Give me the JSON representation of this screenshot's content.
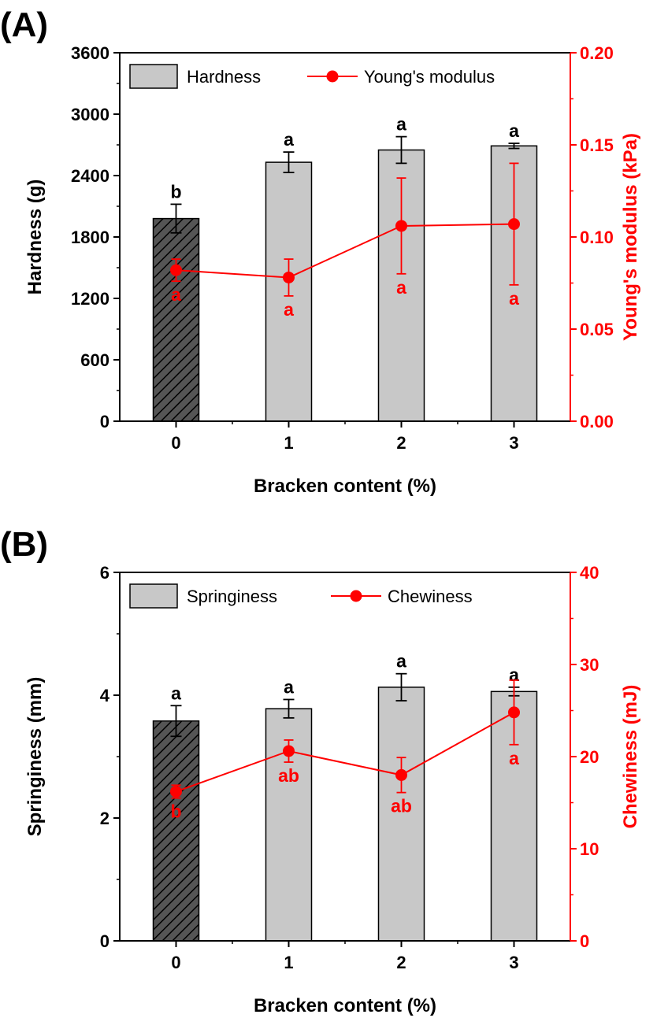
{
  "chart_data": [
    {
      "panel_label": "(A)",
      "type": "bar",
      "categories": [
        "0",
        "1",
        "2",
        "3"
      ],
      "xlabel": "Bracken content (%)",
      "ylabel": "Hardness (g)",
      "ylim": [
        0,
        3600
      ],
      "yticks": [
        "0",
        "600",
        "1200",
        "1800",
        "2400",
        "3000",
        "3600"
      ],
      "y2label": "Young's modulus (kPa)",
      "y2lim": [
        0,
        0.2
      ],
      "y2ticks": [
        "0.00",
        "0.05",
        "0.10",
        "0.15",
        "0.20"
      ],
      "right_axis_color": "#ff0000",
      "legend_placement": "top",
      "series": [
        {
          "name": "Hardness",
          "kind": "bar",
          "axis": "left",
          "values": [
            1980,
            2530,
            2650,
            2690
          ],
          "errors": [
            140,
            100,
            130,
            25
          ],
          "letters": [
            "b",
            "a",
            "a",
            "a"
          ],
          "fill": "#c8c8c8",
          "hatched_categories": [
            "0"
          ]
        },
        {
          "name": "Young's modulus",
          "kind": "line",
          "axis": "right",
          "values": [
            0.082,
            0.078,
            0.106,
            0.107
          ],
          "errors": [
            0.006,
            0.01,
            0.026,
            0.033
          ],
          "letters": [
            "a",
            "a",
            "a",
            "a"
          ],
          "color": "#ff0000"
        }
      ]
    },
    {
      "panel_label": "(B)",
      "type": "bar",
      "categories": [
        "0",
        "1",
        "2",
        "3"
      ],
      "xlabel": "Bracken content (%)",
      "ylabel": "Springiness (mm)",
      "ylim": [
        0,
        6
      ],
      "yticks": [
        "0",
        "2",
        "4",
        "6"
      ],
      "y2label": "Chewiness (mJ)",
      "y2lim": [
        0,
        40
      ],
      "y2ticks": [
        "0",
        "10",
        "20",
        "30",
        "40"
      ],
      "right_axis_color": "#ff0000",
      "legend_placement": "top",
      "series": [
        {
          "name": "Springiness",
          "kind": "bar",
          "axis": "left",
          "values": [
            3.58,
            3.78,
            4.13,
            4.06
          ],
          "errors": [
            0.25,
            0.15,
            0.22,
            0.07
          ],
          "letters": [
            "a",
            "a",
            "a",
            "a"
          ],
          "fill": "#c8c8c8",
          "hatched_categories": [
            "0"
          ]
        },
        {
          "name": "Chewiness",
          "kind": "line",
          "axis": "right",
          "values": [
            16.2,
            20.6,
            18.0,
            24.8
          ],
          "errors": [
            0.7,
            1.2,
            1.9,
            3.5
          ],
          "letters": [
            "b",
            "ab",
            "ab",
            "a"
          ],
          "color": "#ff0000"
        }
      ]
    }
  ]
}
